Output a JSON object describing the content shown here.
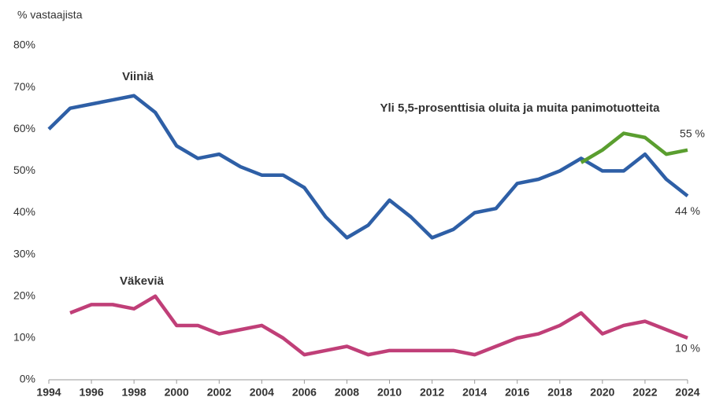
{
  "chart_data": {
    "type": "line",
    "y_label": "% vastaajista",
    "x": [
      1994,
      1995,
      1996,
      1997,
      1998,
      1999,
      2000,
      2001,
      2002,
      2003,
      2004,
      2005,
      2006,
      2007,
      2008,
      2009,
      2010,
      2011,
      2012,
      2013,
      2014,
      2015,
      2016,
      2017,
      2018,
      2019,
      2020,
      2021,
      2022,
      2023,
      2024
    ],
    "series": [
      {
        "name": "Viiniä",
        "color": "#2e5fa6",
        "values": [
          60,
          65,
          66,
          67,
          68,
          64,
          56,
          53,
          54,
          51,
          49,
          49,
          46,
          39,
          34,
          37,
          43,
          39,
          34,
          36,
          40,
          41,
          47,
          48,
          50,
          53,
          50,
          50,
          54,
          48,
          44
        ],
        "value_labels": [
          null,
          null,
          null,
          null,
          null,
          null,
          null,
          null,
          null,
          null,
          null,
          null,
          null,
          null,
          null,
          null,
          null,
          null,
          null,
          null,
          null,
          null,
          null,
          null,
          null,
          null,
          null,
          null,
          null,
          null,
          "44 %"
        ]
      },
      {
        "name": "Väkeviä",
        "color": "#c03f78",
        "values": [
          null,
          16,
          18,
          18,
          17,
          20,
          13,
          13,
          11,
          12,
          13,
          10,
          6,
          7,
          8,
          6,
          7,
          7,
          7,
          7,
          6,
          8,
          10,
          11,
          13,
          16,
          11,
          13,
          14,
          12,
          10
        ],
        "value_labels": [
          null,
          null,
          null,
          null,
          null,
          null,
          null,
          null,
          null,
          null,
          null,
          null,
          null,
          null,
          null,
          null,
          null,
          null,
          null,
          null,
          null,
          null,
          null,
          null,
          null,
          null,
          null,
          null,
          null,
          null,
          "10 %"
        ]
      },
      {
        "name": "Yli 5,5-prosenttisia oluita ja muita panimotuotteita",
        "color": "#5a9e2f",
        "values": [
          null,
          null,
          null,
          null,
          null,
          null,
          null,
          null,
          null,
          null,
          null,
          null,
          null,
          null,
          null,
          null,
          null,
          null,
          null,
          null,
          null,
          null,
          null,
          null,
          null,
          52,
          55,
          59,
          58,
          54,
          55
        ],
        "value_labels": [
          null,
          null,
          null,
          null,
          null,
          null,
          null,
          null,
          null,
          null,
          null,
          null,
          null,
          null,
          null,
          null,
          null,
          null,
          null,
          null,
          null,
          null,
          null,
          null,
          null,
          null,
          null,
          null,
          null,
          null,
          "55 %"
        ]
      }
    ],
    "xlim": [
      1994,
      2024
    ],
    "xticks": [
      1994,
      1996,
      1998,
      2000,
      2002,
      2004,
      2006,
      2008,
      2010,
      2012,
      2014,
      2016,
      2018,
      2020,
      2022,
      2024
    ],
    "ylim": [
      0,
      80
    ],
    "yticks": [
      {
        "value": 0,
        "label": "0%"
      },
      {
        "value": 10,
        "label": "10%"
      },
      {
        "value": 20,
        "label": "20%"
      },
      {
        "value": 30,
        "label": "30%"
      },
      {
        "value": 40,
        "label": "40%"
      },
      {
        "value": 50,
        "label": "50%"
      },
      {
        "value": 60,
        "label": "60%"
      },
      {
        "value": 70,
        "label": "70%"
      },
      {
        "value": 80,
        "label": "80%"
      }
    ],
    "grid": false
  }
}
